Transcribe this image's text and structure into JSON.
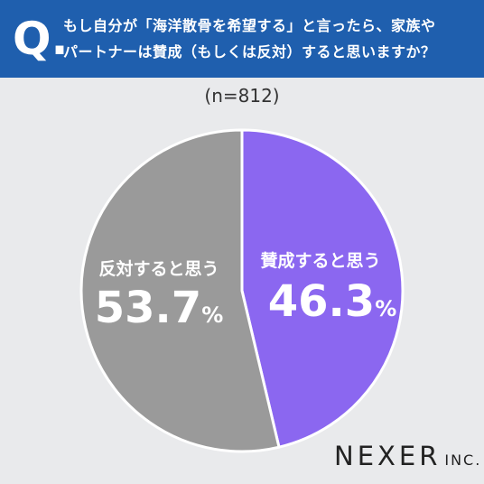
{
  "question": {
    "mark": "Q.",
    "line1": "もし自分が「海洋散骨を希望する」と言ったら、家族や",
    "line2": "パートナーは賛成（もしくは反対）すると思いますか？"
  },
  "sample": "(n=812)",
  "chart_data": {
    "type": "pie",
    "title": "",
    "slices": [
      {
        "label": "賛成すると思う",
        "value": 46.3,
        "display": "46.3",
        "color": "#8b67f0"
      },
      {
        "label": "反対すると思う",
        "value": 53.7,
        "display": "53.7",
        "color": "#9a9a9a"
      }
    ],
    "unit": "%",
    "start": "12 o'clock",
    "direction": "clockwise"
  },
  "brand": {
    "name": "NEXER",
    "suffix": "INC."
  }
}
